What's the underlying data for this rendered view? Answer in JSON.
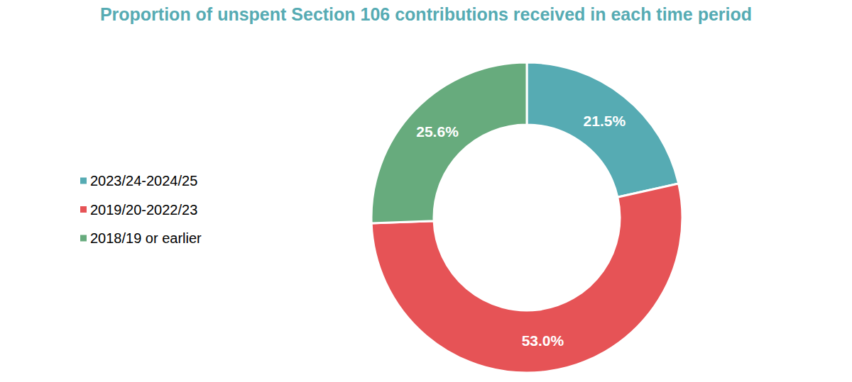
{
  "chart_data": {
    "type": "donut",
    "title": "Proportion of unspent Section 106 contributions received in each time period",
    "categories": [
      "2023/24-2024/25",
      "2019/20-2022/23",
      "2018/19 or earlier"
    ],
    "values": [
      21.5,
      53.0,
      25.6
    ],
    "value_labels": [
      "21.5%",
      "53.0%",
      "25.6%"
    ],
    "colors": [
      "#56abb3",
      "#e65356",
      "#67ab7d"
    ],
    "data_labels": true,
    "legend": "left"
  }
}
